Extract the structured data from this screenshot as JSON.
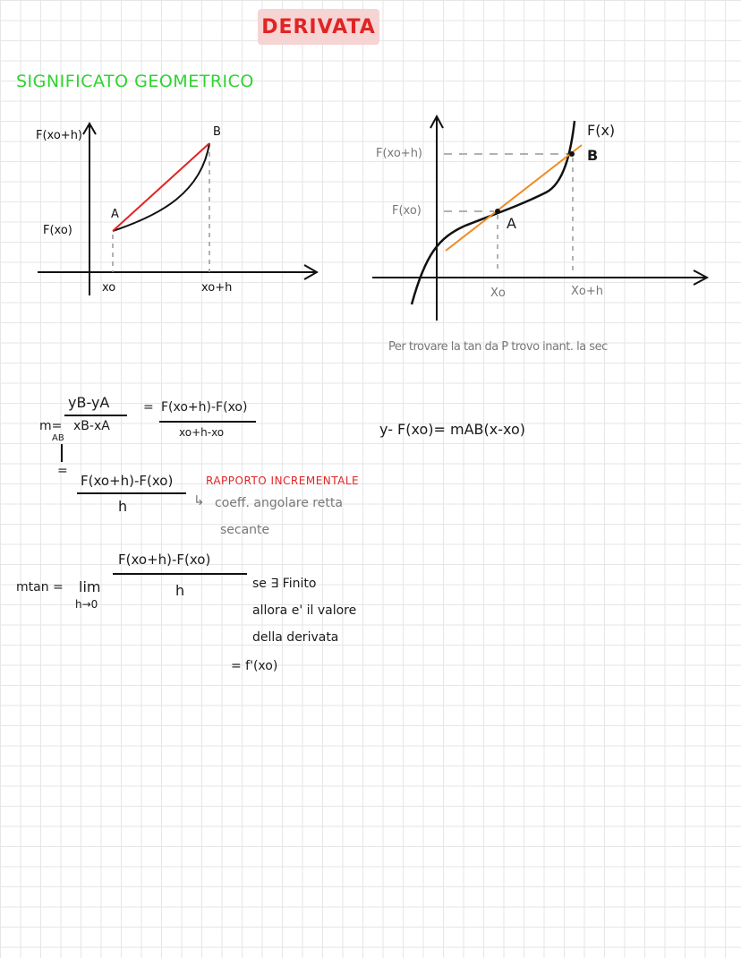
{
  "title": "DERIVATA",
  "subtitle": "SIGNIFICATO GEOMETRICO",
  "graph1": {
    "y_label_top": "F(xo+h)",
    "y_label_bottom": "F(xo)",
    "point_a": "A",
    "point_b": "B",
    "x_label_1": "xo",
    "x_label_2": "xo+h",
    "colors": {
      "secant": "#e02424",
      "curve": "#111111"
    }
  },
  "graph2": {
    "y_label_top": "F(xo+h)",
    "y_label_bottom": "F(xo)",
    "point_a": "A",
    "point_b": "B",
    "func_label": "F(x)",
    "x_label_1": "Xo",
    "x_label_2": "Xo+h",
    "note": "Per trovare la tan da P trovo inant. la sec",
    "colors": {
      "secant": "#f08a24",
      "curve": "#111111"
    }
  },
  "formulas": {
    "m_label": "m=",
    "m_sub": "AB",
    "frac1_num": "yB-yA",
    "frac1_den": "xB-xA",
    "eq1": "=",
    "frac2_num": "F(xo+h)-F(xo)",
    "frac2_den": "xo+h-xo",
    "eq_vertical": "=",
    "frac3_num": "F(xo+h)-F(xo)",
    "frac3_den": "h",
    "ratio_label": "RAPPORTO INCREMENTALE",
    "ratio_note_line1": "coeff. angolare retta",
    "ratio_note_line2": "secante",
    "line_eq": "y- F(xo)= mAB(x-xo)",
    "mtan_label": "mtan =",
    "lim": "lim",
    "lim_sub": "h→0",
    "frac4_num": "F(xo+h)-F(xo)",
    "frac4_den": "h",
    "cond_line1": "se ∃ Finito",
    "cond_line2": "allora e' il valore",
    "cond_line3": "della derivata",
    "result": "= f'(xo)"
  }
}
